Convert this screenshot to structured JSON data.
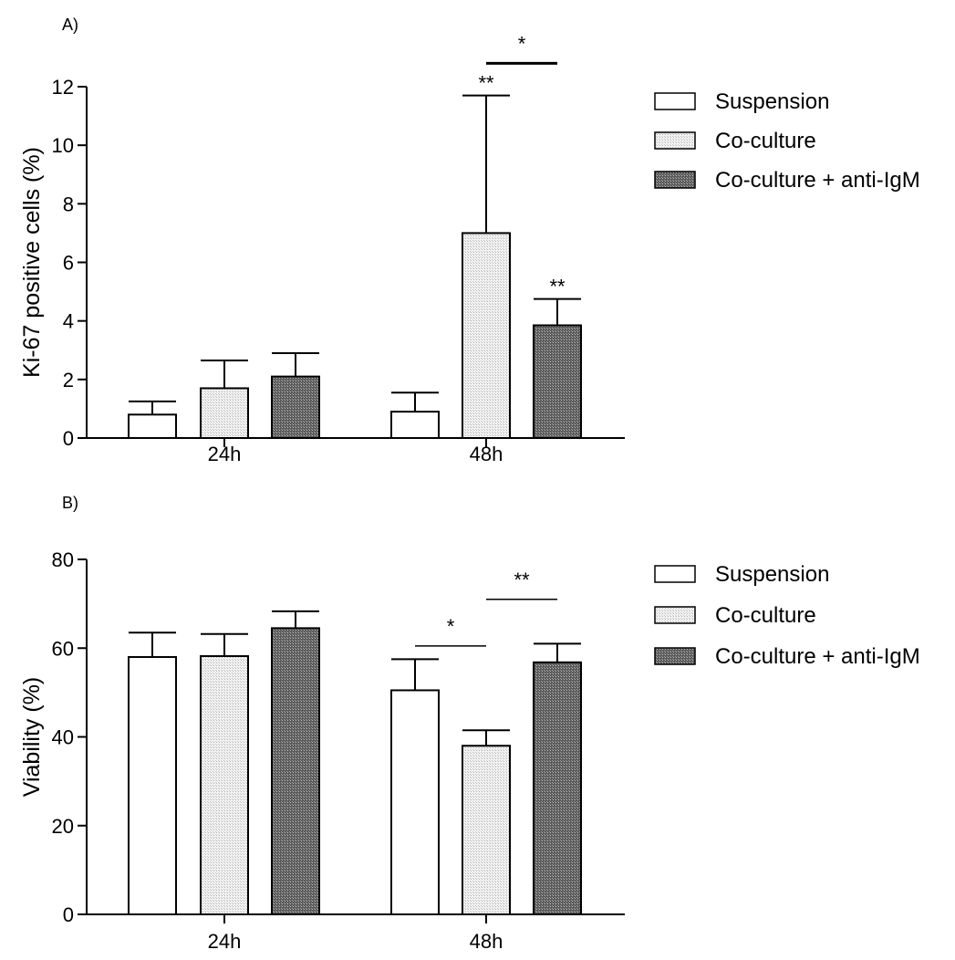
{
  "chart_data": [
    {
      "type": "bar",
      "panel_label": "A)",
      "ylabel": "Ki-67 positive cells (%)",
      "xlabel": "",
      "ylim": [
        0,
        12
      ],
      "yticks": [
        0,
        2,
        4,
        6,
        8,
        10,
        12
      ],
      "categories": [
        "24h",
        "48h"
      ],
      "series": [
        {
          "name": "Suspension",
          "values": [
            0.8,
            0.9
          ],
          "errors": [
            0.45,
            0.65
          ],
          "color": "#ffffff"
        },
        {
          "name": "Co-culture",
          "values": [
            1.7,
            7.0
          ],
          "errors": [
            0.95,
            4.7
          ],
          "color": "#d9d9d9"
        },
        {
          "name": "Co-culture + anti-IgM",
          "values": [
            2.1,
            3.85
          ],
          "errors": [
            0.8,
            0.9
          ],
          "color": "#6f6f6f"
        }
      ],
      "annotations": [
        {
          "text": "**",
          "category": 1,
          "series": 1
        },
        {
          "text": "**",
          "category": 1,
          "series": 2
        },
        {
          "text": "*",
          "category": 1,
          "series_from": 1,
          "series_to": 2,
          "y": 12.8
        }
      ],
      "legend_position": "right"
    },
    {
      "type": "bar",
      "panel_label": "B)",
      "ylabel": "Viability (%)",
      "xlabel": "",
      "ylim": [
        0,
        80
      ],
      "yticks": [
        0,
        20,
        40,
        60,
        80
      ],
      "categories": [
        "24h",
        "48h"
      ],
      "series": [
        {
          "name": "Suspension",
          "values": [
            58,
            50.5
          ],
          "errors": [
            5.5,
            7.0
          ],
          "color": "#ffffff"
        },
        {
          "name": "Co-culture",
          "values": [
            58.2,
            38
          ],
          "errors": [
            5.0,
            3.5
          ],
          "color": "#d9d9d9"
        },
        {
          "name": "Co-culture + anti-IgM",
          "values": [
            64.5,
            56.8
          ],
          "errors": [
            3.8,
            4.2
          ],
          "color": "#6f6f6f"
        }
      ],
      "annotations": [
        {
          "text": "*",
          "category": 1,
          "series_from": 0,
          "series_to": 1,
          "y": 60.5
        },
        {
          "text": "**",
          "category": 1,
          "series_from": 1,
          "series_to": 2,
          "y": 71
        }
      ],
      "legend_position": "right"
    }
  ]
}
